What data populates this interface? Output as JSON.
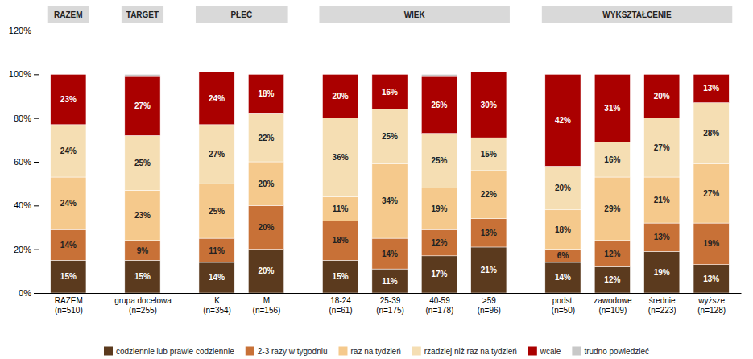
{
  "chart_data": {
    "type": "bar",
    "stacked": true,
    "data_labels": true,
    "grid": false,
    "legend": "bottom",
    "categories": [
      "RAZEM\n(n=510)",
      "grupa docelowa\n(n=255)",
      "K\n(n=354)",
      "M\n(n=156)",
      "18-24\n(n=61)",
      "25-39\n(n=175)",
      "40-59\n(n=178)",
      ">59\n(n=96)",
      "podst.\n(n=50)",
      "zawodowe\n(n=109)",
      "średnie\n(n=223)",
      "wyższe\n(n=128)"
    ],
    "groups": [
      {
        "label": "RAZEM",
        "categories": [
          0
        ]
      },
      {
        "label": "TARGET",
        "categories": [
          1
        ]
      },
      {
        "label": "PŁEĆ",
        "categories": [
          2,
          3
        ]
      },
      {
        "label": "WIEK",
        "categories": [
          4,
          5,
          6,
          7
        ]
      },
      {
        "label": "WYKSZTAŁCENIE",
        "categories": [
          8,
          9,
          10,
          11
        ]
      }
    ],
    "series": [
      {
        "name": "codziennie lub prawie codziennie",
        "color": "#5b3a1e",
        "data_labels": true,
        "values": [
          15,
          15,
          14,
          20,
          15,
          11,
          17,
          21,
          14,
          12,
          19,
          13
        ],
        "value_labels": [
          "15%",
          "15%",
          "14%",
          "20%",
          "15%",
          "11%",
          "17%",
          "21%",
          "14%",
          "12%",
          "19%",
          "13%"
        ]
      },
      {
        "name": "2-3 razy w tygodniu",
        "color": "#c87137",
        "data_labels": true,
        "values": [
          14,
          9,
          11,
          20,
          18,
          14,
          12,
          13,
          6,
          12,
          13,
          19
        ],
        "value_labels": [
          "14%",
          "9%",
          "11%",
          "20%",
          "18%",
          "14%",
          "12%",
          "13%",
          "6%",
          "12%",
          "13%",
          "19%"
        ]
      },
      {
        "name": "raz na tydzień",
        "color": "#f5c98c",
        "data_labels": true,
        "values": [
          24,
          23,
          25,
          20,
          11,
          34,
          19,
          22,
          18,
          29,
          21,
          27
        ],
        "value_labels": [
          "24%",
          "23%",
          "25%",
          "20%",
          "11%",
          "34%",
          "19%",
          "22%",
          "18%",
          "29%",
          "21%",
          "27%"
        ]
      },
      {
        "name": "rzadziej niż raz na tydzień",
        "color": "#f5deb3",
        "data_labels": true,
        "values": [
          24,
          25,
          27,
          22,
          36,
          25,
          25,
          15,
          20,
          16,
          27,
          28
        ],
        "value_labels": [
          "24%",
          "25%",
          "27%",
          "22%",
          "36%",
          "25%",
          "25%",
          "15%",
          "20%",
          "16%",
          "27%",
          "28%"
        ]
      },
      {
        "name": "wcale",
        "color": "#aa0000",
        "data_labels": true,
        "values": [
          23,
          27,
          24,
          18,
          20,
          16,
          26,
          30,
          42,
          31,
          20,
          13
        ],
        "value_labels": [
          "23%",
          "27%",
          "24%",
          "18%",
          "20%",
          "16%",
          "26%",
          "30%",
          "42%",
          "31%",
          "20%",
          "13%"
        ]
      },
      {
        "name": "trudno powiedzieć",
        "color": "#c8c8c8",
        "data_labels": false,
        "values": [
          0,
          1,
          null,
          0,
          0,
          0,
          1,
          null,
          0,
          0,
          0,
          0
        ]
      }
    ],
    "ylim": [
      0,
      120
    ],
    "yticks": [
      {
        "value": 0,
        "label": "0%"
      },
      {
        "value": 20,
        "label": "20%"
      },
      {
        "value": 40,
        "label": "40%"
      },
      {
        "value": 60,
        "label": "60%"
      },
      {
        "value": 80,
        "label": "80%"
      },
      {
        "value": 100,
        "label": "100%"
      },
      {
        "value": 120,
        "label": "120%"
      }
    ]
  }
}
